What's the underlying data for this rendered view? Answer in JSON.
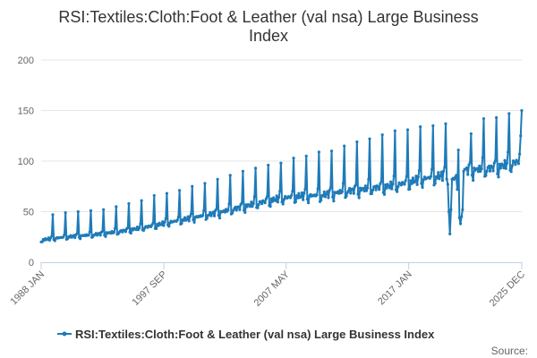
{
  "chart_data": {
    "type": "line",
    "title_line1": "RSI:Textiles:Cloth:Foot & Leather (val nsa) Large Business",
    "title_line2": "Index",
    "xlabel": "",
    "ylabel": "",
    "ylim": [
      0,
      200
    ],
    "y_ticks": [
      "0",
      "50",
      "100",
      "150",
      "200"
    ],
    "x_ticks": [
      {
        "label": "1988 JAN",
        "year": 1988.0
      },
      {
        "label": "1997 SEP",
        "year": 1997.67
      },
      {
        "label": "2007 MAY",
        "year": 2007.33
      },
      {
        "label": "2017 JAN",
        "year": 2017.0
      },
      {
        "label": "2025 DEC",
        "year": 2025.92
      }
    ],
    "xlim": [
      1988.0,
      2025.92
    ],
    "grid": true,
    "legend_position": "bottom",
    "color": "#1f7bb8",
    "series": [
      {
        "name": "RSI:Textiles:Cloth:Foot & Leather (val nsa) Large Business Index",
        "start": "1988-01",
        "frequency": "monthly",
        "base_trend": [
          [
            1988,
            22
          ],
          [
            1990,
            25
          ],
          [
            1992,
            27
          ],
          [
            1994,
            30
          ],
          [
            1996,
            34
          ],
          [
            1998,
            39
          ],
          [
            2000,
            44
          ],
          [
            2002,
            49
          ],
          [
            2004,
            55
          ],
          [
            2006,
            61
          ],
          [
            2008,
            65
          ],
          [
            2010,
            66
          ],
          [
            2012,
            70
          ],
          [
            2014,
            73
          ],
          [
            2016,
            76
          ],
          [
            2018,
            82
          ],
          [
            2019.9,
            86
          ],
          [
            2021.7,
            91
          ],
          [
            2023,
            92
          ],
          [
            2024,
            94
          ],
          [
            2025.92,
            100
          ]
        ],
        "december_peaks": [
          [
            1988,
            47
          ],
          [
            1989,
            49
          ],
          [
            1990,
            50
          ],
          [
            1991,
            51
          ],
          [
            1992,
            52
          ],
          [
            1993,
            55
          ],
          [
            1994,
            58
          ],
          [
            1995,
            61
          ],
          [
            1996,
            66
          ],
          [
            1997,
            68
          ],
          [
            1998,
            71
          ],
          [
            1999,
            75
          ],
          [
            2000,
            78
          ],
          [
            2001,
            82
          ],
          [
            2002,
            86
          ],
          [
            2003,
            90
          ],
          [
            2004,
            93
          ],
          [
            2005,
            96
          ],
          [
            2006,
            98
          ],
          [
            2007,
            103
          ],
          [
            2008,
            105
          ],
          [
            2009,
            109
          ],
          [
            2010,
            110
          ],
          [
            2011,
            115
          ],
          [
            2012,
            119
          ],
          [
            2013,
            122
          ],
          [
            2014,
            126
          ],
          [
            2015,
            130
          ],
          [
            2016,
            131
          ],
          [
            2017,
            134
          ],
          [
            2018,
            135
          ],
          [
            2019,
            137
          ],
          [
            2020,
            111
          ],
          [
            2021,
            127
          ],
          [
            2022,
            142
          ],
          [
            2023,
            143
          ],
          [
            2024,
            147
          ],
          [
            2025,
            150
          ]
        ],
        "overrides": [
          [
            "2020-03",
            50
          ],
          [
            "2020-04",
            28
          ],
          [
            "2020-05",
            52
          ],
          [
            "2020-06",
            82
          ],
          [
            "2020-07",
            83
          ],
          [
            "2020-08",
            82
          ],
          [
            "2020-09",
            84
          ],
          [
            "2020-10",
            86
          ],
          [
            "2020-11",
            72
          ],
          [
            "2021-01",
            44
          ],
          [
            "2021-02",
            38
          ],
          [
            "2021-03",
            45
          ],
          [
            "2021-04",
            52
          ],
          [
            "2021-05",
            90
          ],
          [
            "2021-06",
            92
          ],
          [
            "2025-10",
            107
          ],
          [
            "2025-11",
            125
          ]
        ]
      }
    ]
  },
  "credit": "Source:"
}
